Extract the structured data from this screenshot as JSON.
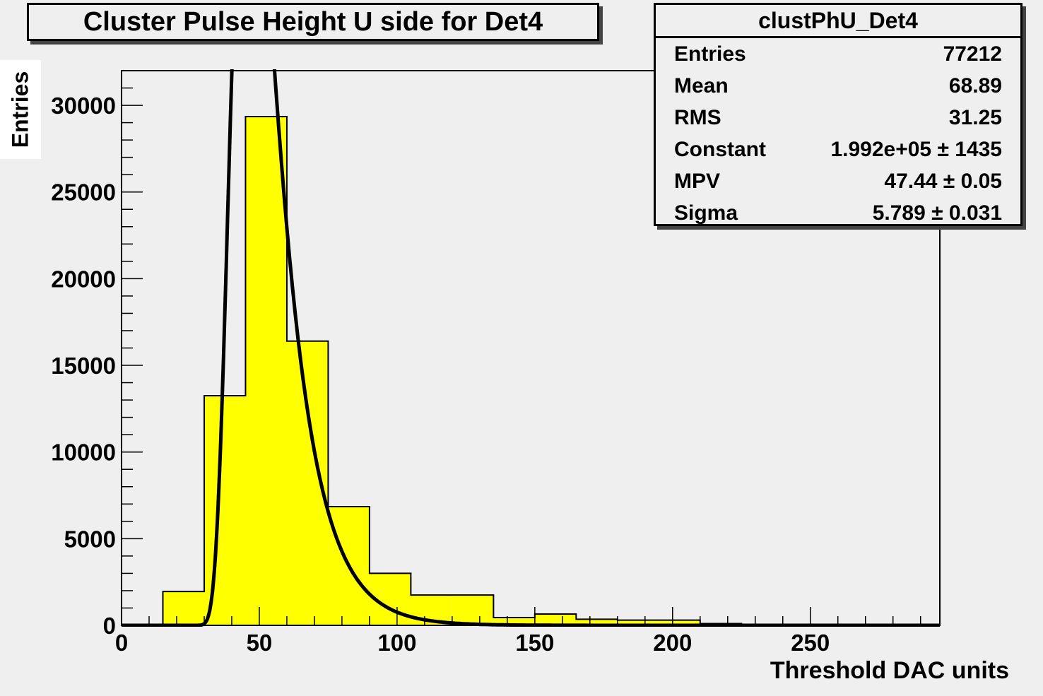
{
  "chart_data": {
    "type": "bar",
    "title": "Cluster Pulse Height U side for Det4",
    "xlabel": "Threshold DAC units",
    "ylabel": "Entries",
    "xlim": [
      0,
      297
    ],
    "ylim": [
      0,
      32000
    ],
    "x_ticks": [
      0,
      50,
      100,
      150,
      200,
      250
    ],
    "y_ticks": [
      0,
      5000,
      10000,
      15000,
      20000,
      25000,
      30000
    ],
    "bin_edges": [
      0,
      15,
      30,
      45,
      60,
      75,
      90,
      105,
      120,
      135,
      150,
      165,
      180,
      195,
      210,
      225,
      240,
      255,
      270,
      285,
      297
    ],
    "values": [
      0,
      1950,
      13250,
      29350,
      16400,
      6850,
      3000,
      1750,
      1750,
      450,
      650,
      350,
      300,
      300,
      100,
      50,
      30,
      20,
      10,
      5
    ],
    "fit": {
      "type": "landau",
      "constant": 199200,
      "mpv": 47.44,
      "sigma": 5.789
    },
    "colors": {
      "fill": "#ffff00",
      "line": "#000000",
      "background": "#efefef"
    },
    "stats": {
      "name": "clustPhU_Det4",
      "rows": [
        {
          "label": "Entries",
          "value": "77212"
        },
        {
          "label": "Mean",
          "value": "68.89"
        },
        {
          "label": "RMS",
          "value": "31.25"
        },
        {
          "label": "Constant",
          "value": "1.992e+05 ± 1435"
        },
        {
          "label": "MPV",
          "value": "47.44 ± 0.05"
        },
        {
          "label": "Sigma",
          "value": "5.789 ± 0.031"
        }
      ]
    },
    "legend_position": "top-right",
    "grid": false
  }
}
